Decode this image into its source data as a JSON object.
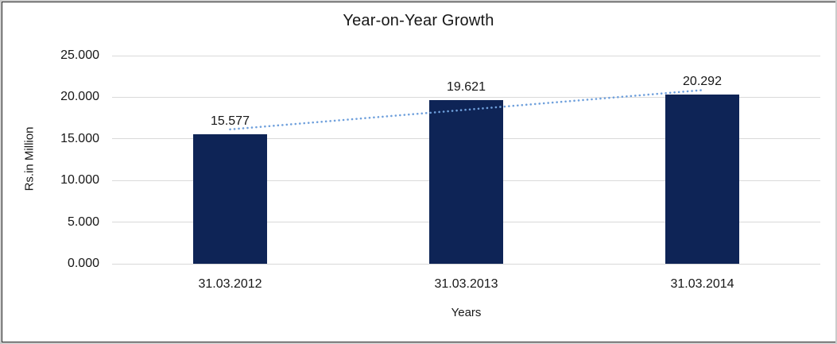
{
  "chart_data": {
    "type": "bar",
    "title": "Year-on-Year Growth",
    "xlabel": "Years",
    "ylabel": "Rs.in Million",
    "categories": [
      "31.03.2012",
      "31.03.2013",
      "31.03.2014"
    ],
    "values": [
      15.577,
      19.621,
      20.292
    ],
    "data_labels": [
      "15.577",
      "19.621",
      "20.292"
    ],
    "yticks": [
      "25.000",
      "20.000",
      "15.000",
      "10.000",
      "5.000",
      "0.000"
    ],
    "ytick_values": [
      25,
      20,
      15,
      10,
      5,
      0
    ],
    "ylim": [
      0,
      25
    ],
    "grid": true,
    "legend": "none",
    "bar_color": "#0e2456",
    "gridline_color": "#d9d9d9",
    "text_color": "#171717",
    "trendline": {
      "type": "linear",
      "style": "dotted",
      "color": "#6fa0dc"
    }
  }
}
